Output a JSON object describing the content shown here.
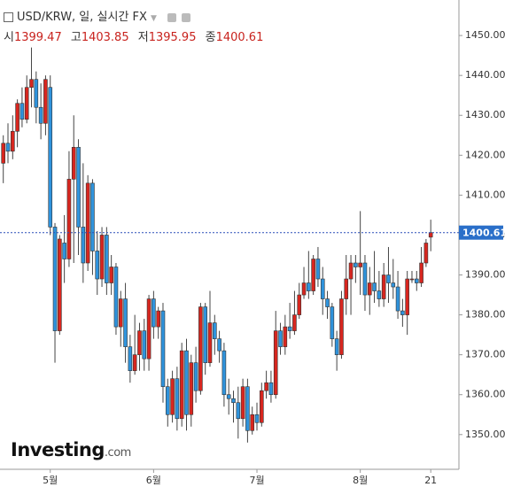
{
  "header": {
    "title": "USD/KRW, 일, 실시간 FX",
    "labels": [
      "시",
      "고",
      "저",
      "종"
    ],
    "brand": "Investing",
    "brand_suffix": ".com"
  },
  "chart_data": {
    "type": "candlestick",
    "open": [
      1418,
      1423,
      1421,
      1426,
      1433,
      1429,
      1437,
      1439,
      1432,
      1428,
      1437,
      1402,
      1376,
      1398,
      1394,
      1414,
      1422,
      1402,
      1393,
      1413,
      1396,
      1389,
      1400,
      1388,
      1392,
      1377,
      1384,
      1372,
      1366,
      1370,
      1376,
      1369,
      1384,
      1377,
      1381,
      1362,
      1355,
      1364,
      1354,
      1371,
      1355,
      1368,
      1361,
      1382,
      1368,
      1378,
      1374,
      1371,
      1360,
      1359,
      1358,
      1354,
      1362,
      1351,
      1355,
      1353,
      1361,
      1363,
      1360,
      1376,
      1372,
      1377,
      1376,
      1380,
      1385,
      1388,
      1386,
      1394,
      1389,
      1384,
      1382,
      1374,
      1370,
      1384,
      1389,
      1393,
      1392,
      1393,
      1385,
      1388,
      1386,
      1384,
      1390,
      1388,
      1387,
      1381,
      1380,
      1389,
      1389,
      1388,
      1393,
      1399.47
    ],
    "high": [
      1425,
      1428,
      1430,
      1434,
      1437,
      1440,
      1447,
      1441,
      1438,
      1440,
      1440,
      1403,
      1400,
      1405,
      1421,
      1430,
      1424,
      1418,
      1415,
      1414,
      1401,
      1402,
      1402,
      1395,
      1393,
      1386,
      1388,
      1375,
      1380,
      1378,
      1379,
      1385,
      1386,
      1382,
      1383,
      1364,
      1366,
      1367,
      1373,
      1374,
      1370,
      1372,
      1383,
      1383,
      1386,
      1380,
      1376,
      1373,
      1364,
      1361,
      1362,
      1364,
      1364,
      1357,
      1358,
      1363,
      1366,
      1366,
      1381,
      1378,
      1380,
      1383,
      1386,
      1388,
      1392,
      1396,
      1395,
      1397,
      1392,
      1386,
      1383,
      1376,
      1386,
      1395,
      1395,
      1395,
      1406,
      1395,
      1392,
      1396,
      1391,
      1393,
      1397,
      1394,
      1391,
      1384,
      1391,
      1391,
      1391,
      1397,
      1399,
      1403.85
    ],
    "low": [
      1413,
      1418,
      1419,
      1422,
      1427,
      1428,
      1432,
      1428,
      1424,
      1425,
      1400,
      1368,
      1375,
      1388,
      1392,
      1393,
      1395,
      1388,
      1391,
      1390,
      1385,
      1387,
      1385,
      1385,
      1375,
      1372,
      1368,
      1363,
      1365,
      1366,
      1366,
      1366,
      1374,
      1374,
      1358,
      1352,
      1353,
      1351,
      1352,
      1351,
      1352,
      1358,
      1360,
      1365,
      1367,
      1370,
      1368,
      1357,
      1355,
      1353,
      1349,
      1352,
      1348,
      1350,
      1351,
      1352,
      1359,
      1358,
      1359,
      1370,
      1370,
      1374,
      1375,
      1379,
      1384,
      1384,
      1385,
      1387,
      1380,
      1379,
      1372,
      1366,
      1369,
      1380,
      1380,
      1388,
      1385,
      1381,
      1380,
      1383,
      1382,
      1382,
      1383,
      1384,
      1379,
      1377,
      1375,
      1388,
      1386,
      1387,
      1392,
      1395.95
    ],
    "close": [
      1423,
      1421,
      1426,
      1433,
      1429,
      1437,
      1439,
      1432,
      1428,
      1439,
      1402,
      1376,
      1399,
      1394,
      1414,
      1422,
      1402,
      1393,
      1413,
      1396,
      1389,
      1400,
      1388,
      1392,
      1377,
      1384,
      1372,
      1366,
      1370,
      1376,
      1369,
      1384,
      1377,
      1381,
      1362,
      1355,
      1364,
      1354,
      1371,
      1355,
      1368,
      1361,
      1382,
      1368,
      1378,
      1374,
      1371,
      1360,
      1359,
      1358,
      1354,
      1362,
      1351,
      1355,
      1353,
      1361,
      1363,
      1360,
      1376,
      1372,
      1377,
      1376,
      1380,
      1385,
      1388,
      1386,
      1394,
      1389,
      1384,
      1382,
      1374,
      1370,
      1384,
      1389,
      1393,
      1392,
      1393,
      1385,
      1388,
      1386,
      1384,
      1390,
      1388,
      1387,
      1381,
      1380,
      1389,
      1389,
      1388,
      1393,
      1398,
      1400.61
    ],
    "up_color": "#d7261f",
    "down_color": "#2f93dc",
    "xlim": [
      -0.7,
      97
    ],
    "xticks": [
      {
        "value": 10,
        "label": "5월"
      },
      {
        "value": 32,
        "label": "6월"
      },
      {
        "value": 54,
        "label": "7월"
      },
      {
        "value": 76,
        "label": "8월"
      },
      {
        "value": 91,
        "label": "21"
      }
    ],
    "ylim": [
      1341.3,
      1458.9
    ],
    "yticks": [
      {
        "value": 1350,
        "label": "1350.00"
      },
      {
        "value": 1360,
        "label": "1360.00"
      },
      {
        "value": 1370,
        "label": "1370.00"
      },
      {
        "value": 1380,
        "label": "1380.00"
      },
      {
        "value": 1390,
        "label": "1390.00"
      },
      {
        "value": 1400,
        "label": "1400.00"
      },
      {
        "value": 1410,
        "label": "1410.00"
      },
      {
        "value": 1420,
        "label": "1420.00"
      },
      {
        "value": 1430,
        "label": "1430.00"
      },
      {
        "value": 1440,
        "label": "1440.00"
      },
      {
        "value": 1450,
        "label": "1450.00"
      }
    ],
    "grid": false
  }
}
